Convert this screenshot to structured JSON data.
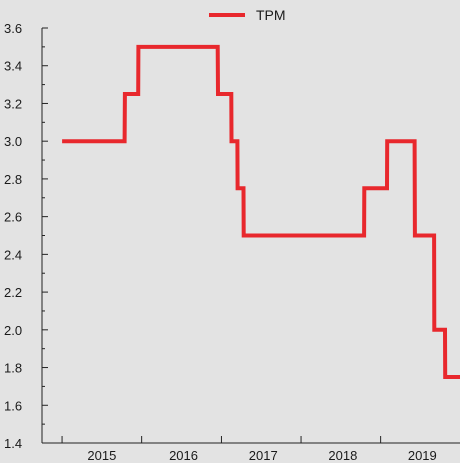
{
  "chart_data": {
    "type": "line",
    "series": [
      {
        "name": "TPM",
        "color": "#e8282d",
        "points": [
          [
            "2015-01-01",
            3.0
          ],
          [
            "2015-10-15",
            3.0
          ],
          [
            "2015-10-16",
            3.25
          ],
          [
            "2015-12-16",
            3.25
          ],
          [
            "2015-12-17",
            3.5
          ],
          [
            "2016-12-15",
            3.5
          ],
          [
            "2016-12-16",
            3.25
          ],
          [
            "2017-02-15",
            3.25
          ],
          [
            "2017-02-16",
            3.0
          ],
          [
            "2017-03-15",
            3.0
          ],
          [
            "2017-03-16",
            2.75
          ],
          [
            "2017-04-12",
            2.75
          ],
          [
            "2017-04-13",
            2.5
          ],
          [
            "2018-10-17",
            2.5
          ],
          [
            "2018-10-18",
            2.75
          ],
          [
            "2019-01-30",
            2.75
          ],
          [
            "2019-01-31",
            3.0
          ],
          [
            "2019-06-06",
            3.0
          ],
          [
            "2019-06-07",
            2.5
          ],
          [
            "2019-09-03",
            2.5
          ],
          [
            "2019-09-04",
            2.0
          ],
          [
            "2019-10-23",
            2.0
          ],
          [
            "2019-10-24",
            1.75
          ],
          [
            "2019-12-31",
            1.75
          ]
        ]
      }
    ],
    "y_ticks": [
      1.4,
      1.6,
      1.8,
      2.0,
      2.2,
      2.4,
      2.6,
      2.8,
      3.0,
      3.2,
      3.4,
      3.6
    ],
    "y_tick_labels": [
      "1.4",
      "1.6",
      "1.8",
      "2.0",
      "2.2",
      "2.4",
      "2.6",
      "2.8",
      "3.0",
      "3.2",
      "3.4",
      "3.6"
    ],
    "ylim": [
      1.4,
      3.6
    ],
    "x_tick_labels": [
      "2015",
      "2016",
      "2017",
      "2018",
      "2019"
    ],
    "xlim": [
      "2014-10-01",
      "2019-12-31"
    ],
    "legend_position": "top-center",
    "grid": false,
    "background": "#e3e3e3"
  }
}
